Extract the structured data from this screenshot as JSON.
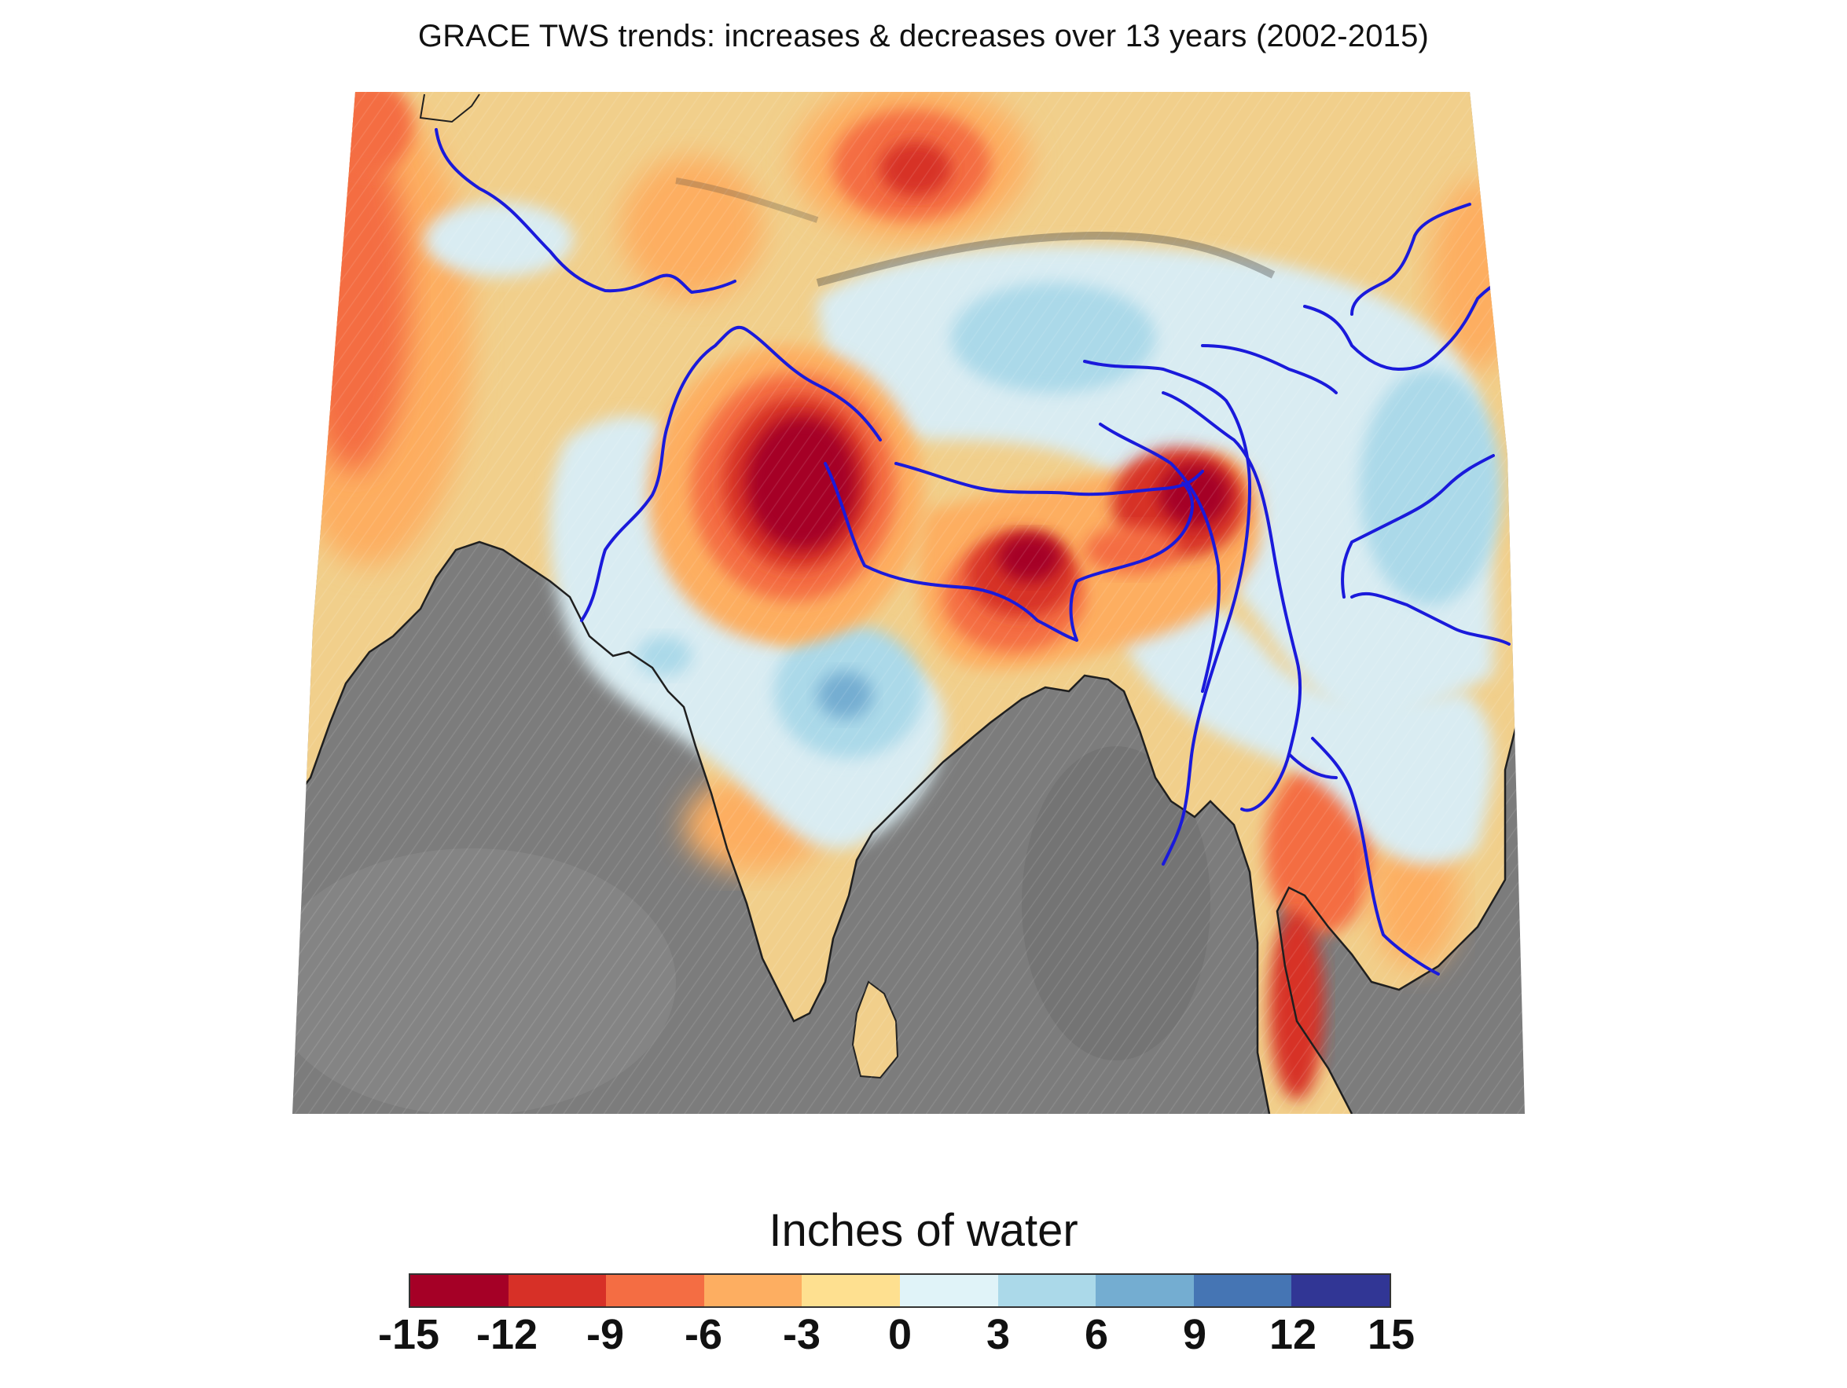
{
  "title": "GRACE TWS trends: increases & decreases over 13 years (2002-2015)",
  "legend": {
    "title": "Inches of water",
    "bins": [
      {
        "from": -15,
        "to": -12,
        "color": "#a50026"
      },
      {
        "from": -12,
        "to": -9,
        "color": "#d73027"
      },
      {
        "from": -9,
        "to": -6,
        "color": "#f46d43"
      },
      {
        "from": -6,
        "to": -3,
        "color": "#fdae61"
      },
      {
        "from": -3,
        "to": 0,
        "color": "#fee090"
      },
      {
        "from": 0,
        "to": 3,
        "color": "#e0f3f8"
      },
      {
        "from": 3,
        "to": 6,
        "color": "#abd9e9"
      },
      {
        "from": 6,
        "to": 9,
        "color": "#74add1"
      },
      {
        "from": 9,
        "to": 12,
        "color": "#4575b4"
      },
      {
        "from": 12,
        "to": 15,
        "color": "#313695"
      }
    ],
    "tick_labels": [
      "-15",
      "-12",
      "-9",
      "-6",
      "-3",
      "0",
      "3",
      "6",
      "9",
      "12",
      "15"
    ]
  },
  "map": {
    "ocean_color": "#7a7a7a",
    "land_base_color": "#f0cf8a",
    "river_color": "#1a1adb",
    "coastline_color": "#222222",
    "features": [
      "terrain-hillshade",
      "rivers",
      "coastline",
      "tws-trend-contours"
    ]
  }
}
